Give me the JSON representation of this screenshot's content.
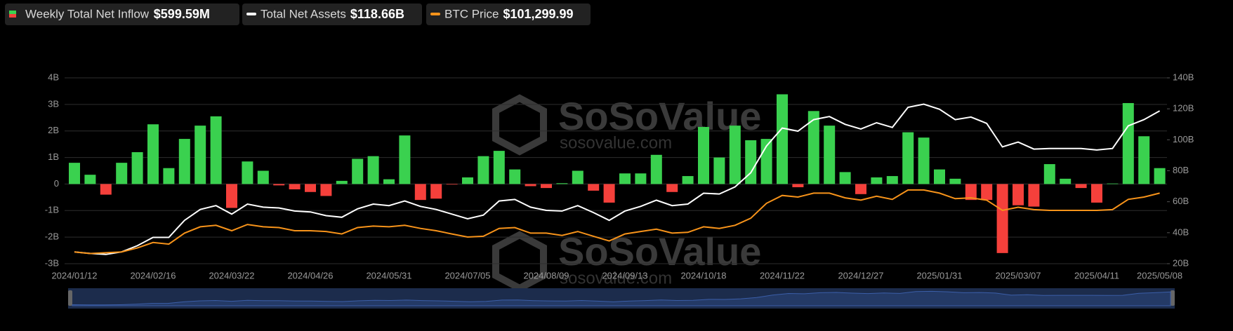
{
  "chart_data": {
    "type": "bar-line",
    "categories": [
      "2024/01/12",
      null,
      null,
      null,
      null,
      "2024/02/16",
      null,
      null,
      null,
      null,
      "2024/03/22",
      null,
      null,
      null,
      null,
      "2024/04/26",
      null,
      null,
      null,
      null,
      "2024/05/31",
      null,
      null,
      null,
      null,
      "2024/07/05",
      null,
      null,
      null,
      null,
      "2024/08/09",
      null,
      null,
      null,
      null,
      "2024/09/13",
      null,
      null,
      null,
      null,
      "2024/10/18",
      null,
      null,
      null,
      null,
      "2024/11/22",
      null,
      null,
      null,
      null,
      "2024/12/27",
      null,
      null,
      null,
      null,
      "2025/01/31",
      null,
      null,
      null,
      null,
      "2025/03/07",
      null,
      null,
      null,
      null,
      "2025/04/11",
      null,
      null,
      null,
      "2025/05/08"
    ],
    "series": [
      {
        "name": "Weekly Total Net Inflow",
        "latest_value_label": "$599.59M",
        "type": "bar",
        "axis": "y",
        "color_positive": "#3ad14f",
        "color_negative": "#f5403b",
        "values": [
          0.8,
          0.35,
          -0.4,
          0.8,
          1.2,
          2.25,
          0.6,
          1.7,
          2.2,
          2.55,
          -0.9,
          0.85,
          0.5,
          -0.05,
          -0.2,
          -0.3,
          -0.45,
          0.12,
          0.95,
          1.05,
          0.18,
          1.83,
          -0.6,
          -0.55,
          -0.02,
          0.25,
          1.05,
          1.25,
          0.55,
          -0.08,
          -0.15,
          0.03,
          0.5,
          -0.25,
          -0.7,
          0.4,
          0.4,
          1.1,
          -0.3,
          0.3,
          2.15,
          1.0,
          2.2,
          1.65,
          1.7,
          3.38,
          -0.12,
          2.75,
          2.2,
          0.45,
          -0.38,
          0.25,
          0.3,
          1.95,
          1.75,
          0.55,
          0.2,
          -0.6,
          -0.6,
          -2.6,
          -0.8,
          -0.85,
          0.75,
          0.2,
          -0.15,
          -0.7,
          0.02,
          3.05,
          1.8,
          0.6
        ]
      },
      {
        "name": "Total Net Assets",
        "latest_value_label": "$118.66B",
        "type": "line",
        "axis": "y2",
        "color": "#ffffff",
        "values": [
          27.6,
          26.6,
          26,
          27.6,
          31.6,
          37,
          37,
          48,
          55,
          57.5,
          52,
          58.5,
          56.5,
          56,
          54,
          53.4,
          51,
          50,
          55.4,
          58.5,
          57.5,
          60.5,
          57,
          55,
          52,
          49,
          51.4,
          60.5,
          61.5,
          56.5,
          54.4,
          54,
          57.5,
          53,
          48,
          54,
          57,
          61,
          57.5,
          58.5,
          65.5,
          65,
          69.6,
          78.7,
          96,
          107.6,
          105.6,
          113,
          115,
          110,
          107,
          111,
          108,
          121,
          123,
          119.7,
          113,
          114.7,
          110.6,
          95.4,
          98.5,
          94,
          94.4,
          94.4,
          94.4,
          93.4,
          94.4,
          109,
          113,
          118.66
        ]
      },
      {
        "name": "BTC Price",
        "latest_value_label": "$101,299.99",
        "type": "line",
        "axis": "y3",
        "color": "#f7931a",
        "values": [
          42800,
          41200,
          42000,
          42800,
          46700,
          52200,
          50600,
          61500,
          67800,
          69300,
          63900,
          70100,
          67800,
          67000,
          63900,
          63900,
          63100,
          60700,
          67000,
          68500,
          67800,
          69300,
          66200,
          63900,
          60700,
          57600,
          58400,
          66200,
          67000,
          61500,
          61500,
          59200,
          63100,
          58400,
          53700,
          60700,
          63100,
          65400,
          61500,
          62300,
          67800,
          66200,
          69300,
          76300,
          91200,
          99000,
          97400,
          101300,
          101300,
          96600,
          94300,
          98200,
          95100,
          104400,
          104400,
          101300,
          95800,
          96600,
          94300,
          84100,
          87300,
          84900,
          84100,
          84100,
          84100,
          84100,
          84900,
          95100,
          97400,
          101299.99
        ]
      }
    ],
    "ylim": [
      -3,
      4
    ],
    "yticks": [
      {
        "value": -3,
        "label": "-3B"
      },
      {
        "value": -2,
        "label": "-2B"
      },
      {
        "value": -1,
        "label": "-1B"
      },
      0,
      {
        "value": 1,
        "label": "1B"
      },
      {
        "value": 2,
        "label": "2B"
      },
      {
        "value": 3,
        "label": "3B"
      },
      {
        "value": 4,
        "label": "4B"
      }
    ],
    "y2lim": [
      20,
      140
    ],
    "y2ticks": [
      {
        "value": 20,
        "label": "20B"
      },
      {
        "value": 40,
        "label": "40B"
      },
      {
        "value": 60,
        "label": "60B"
      },
      {
        "value": 80,
        "label": "80B"
      },
      {
        "value": 100,
        "label": "100B"
      },
      {
        "value": 120,
        "label": "120B"
      },
      {
        "value": 140,
        "label": "140B"
      }
    ],
    "y3lim": [
      31100,
      216000
    ],
    "grid": true,
    "watermark": {
      "brand": "SoSoValue",
      "url": "sosovalue.com"
    }
  }
}
